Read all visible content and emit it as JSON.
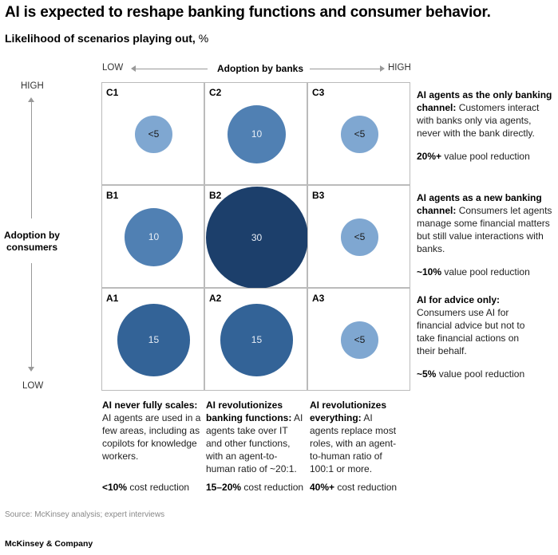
{
  "title": "AI is expected to reshape banking functions and consumer behavior.",
  "subtitle": {
    "main": "Likelihood of scenarios playing out,",
    "unit": "%"
  },
  "chart_data": {
    "type": "bubble-matrix",
    "title": "AI is expected to reshape banking functions and consumer behavior.",
    "subtitle": "Likelihood of scenarios playing out, %",
    "x_axis": {
      "label": "Adoption by banks",
      "low": "LOW",
      "high": "HIGH",
      "categories": [
        "1",
        "2",
        "3"
      ]
    },
    "y_axis": {
      "label": "Adoption by consumers",
      "low": "LOW",
      "high": "HIGH",
      "categories": [
        "A",
        "B",
        "C"
      ]
    },
    "cells": [
      {
        "id": "C1",
        "row": "C",
        "col": 1,
        "label": "<5",
        "value": 4
      },
      {
        "id": "C2",
        "row": "C",
        "col": 2,
        "label": "10",
        "value": 10
      },
      {
        "id": "C3",
        "row": "C",
        "col": 3,
        "label": "<5",
        "value": 4
      },
      {
        "id": "B1",
        "row": "B",
        "col": 1,
        "label": "10",
        "value": 10
      },
      {
        "id": "B2",
        "row": "B",
        "col": 2,
        "label": "30",
        "value": 30
      },
      {
        "id": "B3",
        "row": "B",
        "col": 3,
        "label": "<5",
        "value": 4
      },
      {
        "id": "A1",
        "row": "A",
        "col": 1,
        "label": "15",
        "value": 15
      },
      {
        "id": "A2",
        "row": "A",
        "col": 2,
        "label": "15",
        "value": 15
      },
      {
        "id": "A3",
        "row": "A",
        "col": 3,
        "label": "<5",
        "value": 4
      }
    ],
    "colors": {
      "<5": "#7fa7d1",
      "10": "#5080b3",
      "15": "#336397",
      "30": "#1c3f6b"
    }
  },
  "row_descriptions": [
    {
      "heading": "AI agents as the only banking channel:",
      "text": "Customers interact with banks only via agents, never with the bank directly.",
      "metric_bold": "20%+",
      "metric": "value pool reduction"
    },
    {
      "heading": "AI agents as a new banking channel:",
      "text": "Consumers let agents manage some financial matters but still value interactions with banks.",
      "metric_bold": "~10%",
      "metric": "value pool reduction"
    },
    {
      "heading": "AI for advice only:",
      "text": "Consumers use AI for financial advice but not to take financial actions on their behalf.",
      "metric_bold": "~5%",
      "metric": "value pool reduction"
    }
  ],
  "col_descriptions": [
    {
      "heading": "AI never fully scales:",
      "text": "AI agents are used in a few areas, including as copilots for knowledge workers.",
      "metric_bold": "<10%",
      "metric": "cost reduction"
    },
    {
      "heading": "AI revolutionizes banking functions:",
      "text": "AI agents take over IT and other functions, with an agent-to-human ratio of ~20:1.",
      "metric_bold": "15–20%",
      "metric": "cost reduction"
    },
    {
      "heading": "AI revolutionizes everything:",
      "text": "AI agents replace most roles, with an agent-to-human ratio of 100:1 or more.",
      "metric_bold": "40%+",
      "metric": "cost reduction"
    }
  ],
  "source": "Source: McKinsey analysis; expert interviews",
  "logo": "McKinsey & Company"
}
